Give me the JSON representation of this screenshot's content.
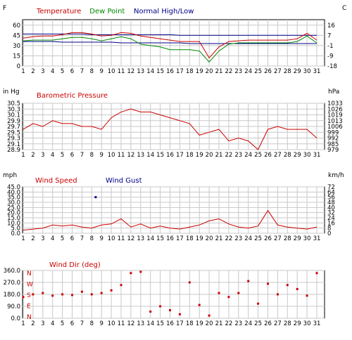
{
  "chart_data": [
    {
      "type": "line",
      "title_series": [
        {
          "name": "Temperature",
          "color": "#cc0000"
        },
        {
          "name": "Dew Point",
          "color": "#008800"
        },
        {
          "name": "Normal High/Low",
          "color": "#000088"
        }
      ],
      "left_unit": "F",
      "right_unit": "C",
      "left_ticks": [
        "60",
        "45",
        "30",
        "15",
        "0"
      ],
      "right_ticks": [
        "16",
        "7",
        "-1",
        "-9",
        "-18"
      ],
      "ylim": [
        0,
        68
      ],
      "x": [
        1,
        2,
        3,
        4,
        5,
        6,
        7,
        8,
        9,
        10,
        11,
        12,
        13,
        14,
        15,
        16,
        17,
        18,
        19,
        20,
        21,
        22,
        23,
        24,
        25,
        26,
        27,
        28,
        29,
        30,
        31
      ],
      "x_ticks": [
        "1",
        "2",
        "3",
        "4",
        "5",
        "6",
        "7",
        "8",
        "9",
        "10",
        "11",
        "12",
        "13",
        "14",
        "15",
        "16",
        "17",
        "18",
        "19",
        "20",
        "21",
        "22",
        "23",
        "24",
        "25",
        "26",
        "27",
        "28",
        "29",
        "30",
        "31"
      ],
      "series": [
        {
          "name": "Temperature",
          "values": [
            41,
            43,
            44,
            44,
            46,
            49,
            49,
            47,
            44,
            45,
            49,
            48,
            44,
            42,
            40,
            38,
            36,
            36,
            36,
            12,
            28,
            36,
            37,
            38,
            38,
            38,
            38,
            38,
            40,
            48,
            38
          ]
        },
        {
          "name": "Dew Point",
          "values": [
            37,
            38,
            38,
            38,
            40,
            42,
            42,
            40,
            37,
            40,
            43,
            40,
            32,
            30,
            28,
            24,
            24,
            24,
            22,
            6,
            22,
            32,
            34,
            34,
            34,
            34,
            34,
            34,
            36,
            44,
            34
          ]
        },
        {
          "name": "Normal High",
          "values": [
            47,
            47,
            47,
            47,
            47,
            47,
            47,
            46,
            46,
            46,
            46,
            46,
            46,
            46,
            46,
            46,
            45,
            45,
            45,
            45,
            45,
            45,
            45,
            45,
            45,
            45,
            45,
            45,
            45,
            45,
            45
          ]
        },
        {
          "name": "Normal Low",
          "values": [
            36,
            36,
            36,
            36,
            35,
            35,
            35,
            35,
            35,
            35,
            34,
            34,
            34,
            34,
            34,
            34,
            34,
            33,
            33,
            33,
            33,
            33,
            33,
            33,
            33,
            33,
            33,
            33,
            33,
            33,
            33
          ]
        }
      ]
    },
    {
      "type": "line",
      "title": "Barometric Pressure",
      "title_color": "#cc0000",
      "left_unit": "in Hg",
      "right_unit": "hPa",
      "left_ticks": [
        "30.5",
        "30.3",
        "30.1",
        "29.9",
        "29.7",
        "29.5",
        "29.3",
        "29.1",
        "28.9"
      ],
      "right_ticks": [
        "1033",
        "1026",
        "1019",
        "1013",
        "1006",
        "999",
        "992",
        "985",
        "979"
      ],
      "ylim": [
        28.9,
        30.5
      ],
      "x_ticks": [
        "1",
        "2",
        "3",
        "4",
        "5",
        "6",
        "7",
        "8",
        "9",
        "10",
        "11",
        "12",
        "13",
        "14",
        "15",
        "16",
        "17",
        "18",
        "19",
        "20",
        "21",
        "22",
        "23",
        "24",
        "25",
        "26",
        "27",
        "28",
        "29",
        "30",
        "31"
      ],
      "series": [
        {
          "name": "Barometric Pressure",
          "values": [
            29.6,
            29.8,
            29.7,
            29.9,
            29.8,
            29.8,
            29.7,
            29.7,
            29.6,
            30.0,
            30.2,
            30.3,
            30.2,
            30.2,
            30.1,
            30.0,
            29.9,
            29.8,
            29.4,
            29.5,
            29.6,
            29.2,
            29.3,
            29.2,
            28.9,
            29.6,
            29.7,
            29.6,
            29.6,
            29.6,
            29.3
          ]
        }
      ]
    },
    {
      "type": "line",
      "title_series": [
        {
          "name": "Wind Speed",
          "color": "#cc0000"
        },
        {
          "name": "Wind Gust",
          "color": "#000088"
        }
      ],
      "left_unit": "mph",
      "right_unit": "km/h",
      "left_ticks": [
        "45.0",
        "40.0",
        "35.0",
        "30.0",
        "25.0",
        "20.0",
        "15.0",
        "10.0",
        "5.0",
        "0.0"
      ],
      "right_ticks": [
        "72",
        "64",
        "56",
        "48",
        "40",
        "32",
        "24",
        "16",
        "8",
        "0"
      ],
      "ylim": [
        0,
        45
      ],
      "x_ticks": [
        "1",
        "2",
        "3",
        "4",
        "5",
        "6",
        "7",
        "8",
        "9",
        "10",
        "11",
        "12",
        "13",
        "14",
        "15",
        "16",
        "17",
        "18",
        "19",
        "20",
        "21",
        "22",
        "23",
        "24",
        "25",
        "26",
        "27",
        "28",
        "29",
        "30",
        "31"
      ],
      "series": [
        {
          "name": "Wind Speed",
          "values": [
            3,
            4,
            5,
            8,
            7,
            8,
            6,
            5,
            8,
            9,
            14,
            6,
            9,
            5,
            7,
            5,
            4,
            6,
            8,
            12,
            14,
            9,
            6,
            5,
            7,
            22,
            8,
            6,
            5,
            4,
            6
          ]
        },
        {
          "name": "Wind Gust",
          "points": [
            [
              8.4,
              35
            ]
          ]
        }
      ]
    },
    {
      "type": "scatter",
      "title": "Wind Dir (deg)",
      "title_color": "#cc0000",
      "left_ticks": [
        "360.0",
        "270.0",
        "180.0",
        "90.0",
        "0.0"
      ],
      "compass": [
        "N",
        "W",
        "S",
        "E",
        "N"
      ],
      "ylim": [
        0,
        360
      ],
      "x_ticks": [
        "1",
        "2",
        "3",
        "4",
        "5",
        "6",
        "7",
        "8",
        "9",
        "10",
        "11",
        "12",
        "13",
        "14",
        "15",
        "16",
        "17",
        "18",
        "19",
        "20",
        "21",
        "22",
        "23",
        "24",
        "25",
        "26",
        "27",
        "28",
        "29",
        "30",
        "31"
      ],
      "series": [
        {
          "name": "Wind Dir",
          "values": [
            160,
            180,
            190,
            170,
            180,
            175,
            200,
            180,
            190,
            210,
            250,
            340,
            350,
            50,
            90,
            60,
            30,
            270,
            100,
            20,
            190,
            160,
            190,
            280,
            110,
            260,
            180,
            250,
            220,
            170,
            340
          ]
        }
      ]
    }
  ]
}
